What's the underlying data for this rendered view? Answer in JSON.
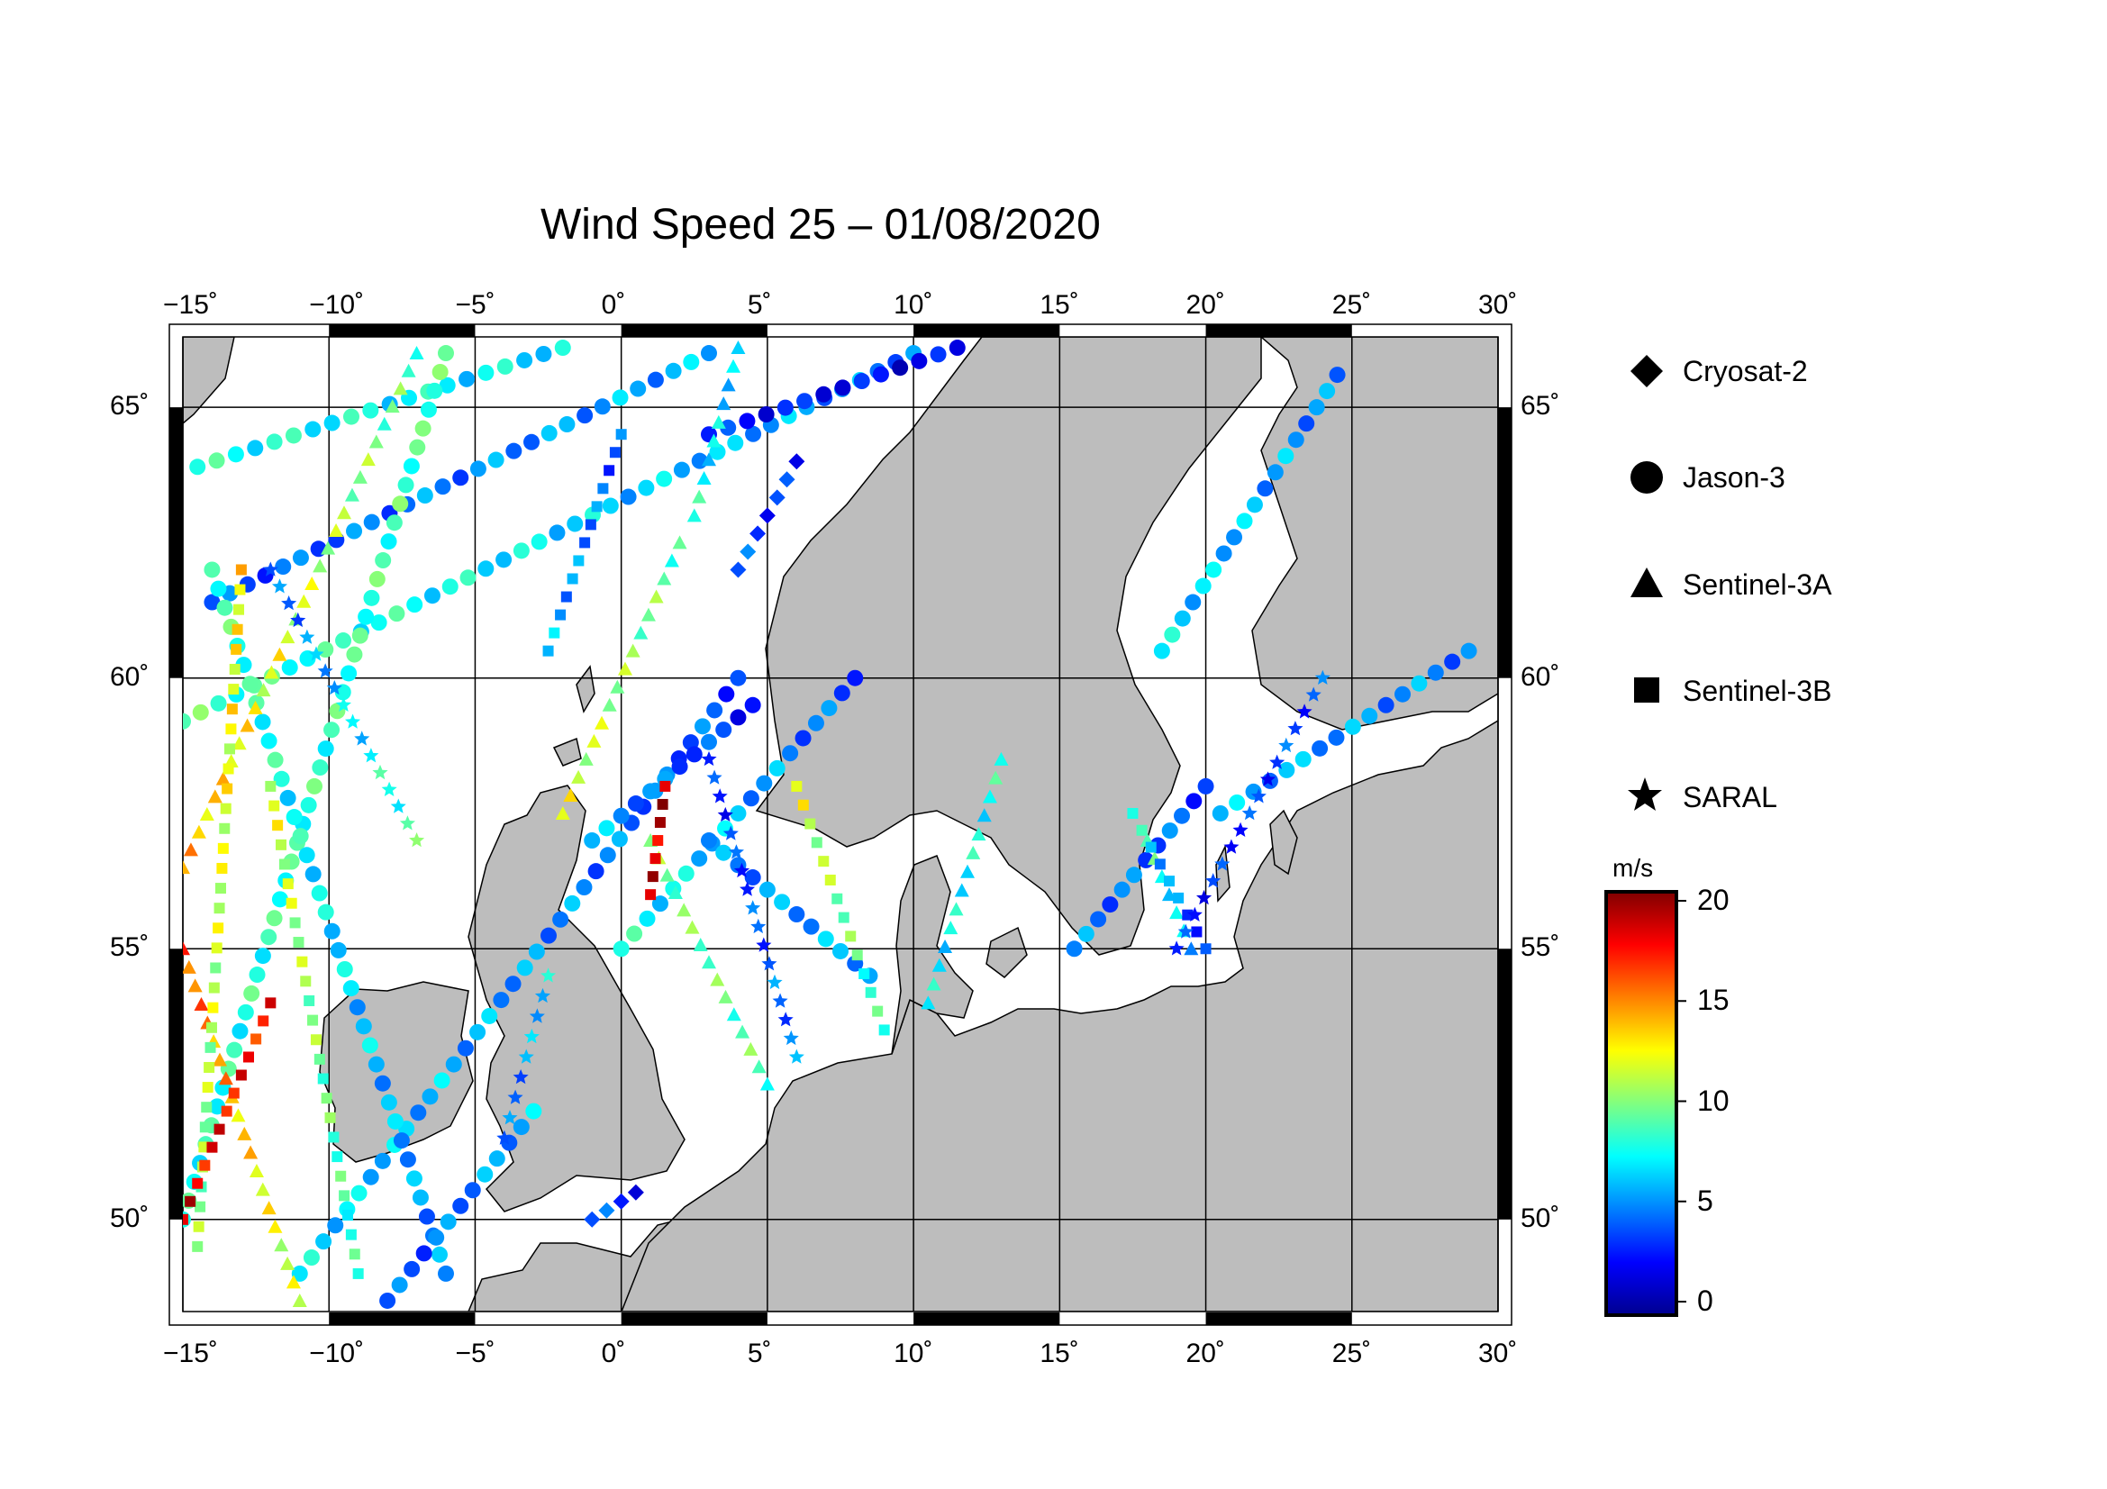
{
  "title": "Wind Speed 25 – 01/08/2020",
  "map": {
    "lon_range": [
      -15,
      30
    ],
    "lat_range": [
      48.3,
      66.3
    ],
    "lon_ticks": [
      -15,
      -10,
      -5,
      0,
      5,
      10,
      15,
      20,
      25,
      30
    ],
    "lon_tick_labels": [
      "−15˚",
      "−10˚",
      "−5˚",
      "0˚",
      "5˚",
      "10˚",
      "15˚",
      "20˚",
      "25˚",
      "30˚"
    ],
    "lat_ticks": [
      50,
      55,
      60,
      65
    ],
    "lat_tick_labels": [
      "50˚",
      "55˚",
      "60˚",
      "65˚"
    ],
    "grid": true,
    "land_color": "#bdbdbd",
    "sea_color": "#ffffff"
  },
  "legend": {
    "placement": "right",
    "items": [
      {
        "label": "Cryosat-2",
        "symbol": "diamond-icon"
      },
      {
        "label": "Jason-3",
        "symbol": "circle-icon"
      },
      {
        "label": "Sentinel-3A",
        "symbol": "triangle-icon"
      },
      {
        "label": "Sentinel-3B",
        "symbol": "square-icon"
      },
      {
        "label": "SARAL",
        "symbol": "star-icon"
      }
    ]
  },
  "colorbar": {
    "unit": "m/s",
    "range": [
      0,
      20
    ],
    "ticks": [
      0,
      5,
      10,
      15,
      20
    ],
    "tick_labels": [
      "0",
      "5",
      "10",
      "15",
      "20"
    ],
    "colormap": [
      "#00008f",
      "#0000ff",
      "#0080ff",
      "#00ffff",
      "#80ff80",
      "#ffff00",
      "#ff8000",
      "#ff0000",
      "#800000"
    ]
  },
  "chart_data": {
    "type": "scatter",
    "title": "Wind Speed 25 – 01/08/2020",
    "xlabel": "",
    "ylabel": "",
    "xlim": [
      -15,
      30
    ],
    "ylim": [
      48.3,
      66.3
    ],
    "color_variable": "wind speed (m/s)",
    "tracks": [
      {
        "satellite": "Jason-3",
        "start": [
          -14.5,
          63.9
        ],
        "end": [
          -2.0,
          66.1
        ],
        "speed_start": 8,
        "speed_end": 7
      },
      {
        "satellite": "Jason-3",
        "start": [
          -14.0,
          61.4
        ],
        "end": [
          3.0,
          66.0
        ],
        "speed_start": 4,
        "speed_end": 6
      },
      {
        "satellite": "Jason-3",
        "start": [
          -15.0,
          59.2
        ],
        "end": [
          10.0,
          66.0
        ],
        "speed_start": 9,
        "speed_end": 5
      },
      {
        "satellite": "Jason-3",
        "start": [
          -15.0,
          50.0
        ],
        "end": [
          -6.0,
          66.0
        ],
        "speed_start": 8,
        "speed_end": 9
      },
      {
        "satellite": "Jason-3",
        "start": [
          -11.0,
          49.0
        ],
        "end": [
          4.0,
          60.0
        ],
        "speed_start": 7,
        "speed_end": 4
      },
      {
        "satellite": "Jason-3",
        "start": [
          -6.0,
          49.0
        ],
        "end": [
          -14.0,
          62.0
        ],
        "speed_start": 5,
        "speed_end": 9
      },
      {
        "satellite": "Jason-3",
        "start": [
          -1.0,
          57.0
        ],
        "end": [
          4.5,
          59.5
        ],
        "speed_start": 6,
        "speed_end": 3
      },
      {
        "satellite": "Jason-3",
        "start": [
          0.0,
          55.0
        ],
        "end": [
          8.0,
          60.0
        ],
        "speed_start": 8,
        "speed_end": 4
      },
      {
        "satellite": "Jason-3",
        "start": [
          3.0,
          64.5
        ],
        "end": [
          11.5,
          66.1
        ],
        "speed_start": 3,
        "speed_end": 2
      },
      {
        "satellite": "Jason-3",
        "start": [
          3.0,
          57.0
        ],
        "end": [
          8.5,
          54.5
        ],
        "speed_start": 5,
        "speed_end": 6
      },
      {
        "satellite": "Jason-3",
        "start": [
          18.5,
          60.5
        ],
        "end": [
          24.5,
          65.6
        ],
        "speed_start": 7,
        "speed_end": 5
      },
      {
        "satellite": "Jason-3",
        "start": [
          15.5,
          55.0
        ],
        "end": [
          20.0,
          58.0
        ],
        "speed_start": 5,
        "speed_end": 4
      },
      {
        "satellite": "Jason-3",
        "start": [
          20.5,
          57.5
        ],
        "end": [
          29.0,
          60.5
        ],
        "speed_start": 6,
        "speed_end": 5
      },
      {
        "satellite": "Jason-3",
        "start": [
          -8.0,
          48.5
        ],
        "end": [
          -3.0,
          52.0
        ],
        "speed_start": 4,
        "speed_end": 6
      },
      {
        "satellite": "Sentinel-3A",
        "start": [
          -15.0,
          56.5
        ],
        "end": [
          -7.0,
          66.0
        ],
        "speed_start": 14,
        "speed_end": 9
      },
      {
        "satellite": "Sentinel-3A",
        "start": [
          -11.0,
          48.5
        ],
        "end": [
          -15.0,
          55.0
        ],
        "speed_start": 11,
        "speed_end": 16
      },
      {
        "satellite": "Sentinel-3A",
        "start": [
          -2.0,
          57.5
        ],
        "end": [
          2.0,
          62.5
        ],
        "speed_start": 12,
        "speed_end": 9
      },
      {
        "satellite": "Sentinel-3A",
        "start": [
          1.0,
          57.0
        ],
        "end": [
          5.0,
          52.5
        ],
        "speed_start": 10,
        "speed_end": 9
      },
      {
        "satellite": "Sentinel-3A",
        "start": [
          2.5,
          63.0
        ],
        "end": [
          4.0,
          66.1
        ],
        "speed_start": 8,
        "speed_end": 6
      },
      {
        "satellite": "Sentinel-3A",
        "start": [
          10.5,
          54.0
        ],
        "end": [
          13.0,
          58.5
        ],
        "speed_start": 7,
        "speed_end": 8
      },
      {
        "satellite": "Sentinel-3A",
        "start": [
          18.0,
          57.0
        ],
        "end": [
          19.5,
          55.0
        ],
        "speed_start": 9,
        "speed_end": 6
      },
      {
        "satellite": "Sentinel-3B",
        "start": [
          -14.5,
          49.5
        ],
        "end": [
          -13.0,
          62.0
        ],
        "speed_start": 10,
        "speed_end": 13
      },
      {
        "satellite": "Sentinel-3B",
        "start": [
          -15.0,
          50.0
        ],
        "end": [
          -12.0,
          54.0
        ],
        "speed_start": 18,
        "speed_end": 17
      },
      {
        "satellite": "Sentinel-3B",
        "start": [
          -9.0,
          49.0
        ],
        "end": [
          -12.0,
          58.0
        ],
        "speed_start": 8,
        "speed_end": 12
      },
      {
        "satellite": "Sentinel-3B",
        "start": [
          1.0,
          56.0
        ],
        "end": [
          1.5,
          58.0
        ],
        "speed_start": 18,
        "speed_end": 19
      },
      {
        "satellite": "Sentinel-3B",
        "start": [
          6.0,
          58.0
        ],
        "end": [
          9.0,
          53.5
        ],
        "speed_start": 12,
        "speed_end": 8
      },
      {
        "satellite": "Sentinel-3B",
        "start": [
          -2.5,
          60.5
        ],
        "end": [
          0.0,
          64.5
        ],
        "speed_start": 6,
        "speed_end": 4
      },
      {
        "satellite": "Sentinel-3B",
        "start": [
          17.5,
          57.5
        ],
        "end": [
          20.0,
          55.0
        ],
        "speed_start": 8,
        "speed_end": 3
      },
      {
        "satellite": "SARAL",
        "start": [
          -12.0,
          62.0
        ],
        "end": [
          -7.0,
          57.0
        ],
        "speed_start": 4,
        "speed_end": 9
      },
      {
        "satellite": "SARAL",
        "start": [
          3.0,
          58.5
        ],
        "end": [
          6.0,
          53.0
        ],
        "speed_start": 3,
        "speed_end": 5
      },
      {
        "satellite": "SARAL",
        "start": [
          19.0,
          55.0
        ],
        "end": [
          24.0,
          60.0
        ],
        "speed_start": 3,
        "speed_end": 4
      },
      {
        "satellite": "SARAL",
        "start": [
          -4.0,
          51.5
        ],
        "end": [
          -2.5,
          54.5
        ],
        "speed_start": 4,
        "speed_end": 7
      },
      {
        "satellite": "Cryosat-2",
        "start": [
          4.0,
          62.0
        ],
        "end": [
          6.0,
          64.0
        ],
        "speed_start": 4,
        "speed_end": 3
      },
      {
        "satellite": "Cryosat-2",
        "start": [
          -1.0,
          50.0
        ],
        "end": [
          0.5,
          50.5
        ],
        "speed_start": 4,
        "speed_end": 3
      }
    ]
  }
}
